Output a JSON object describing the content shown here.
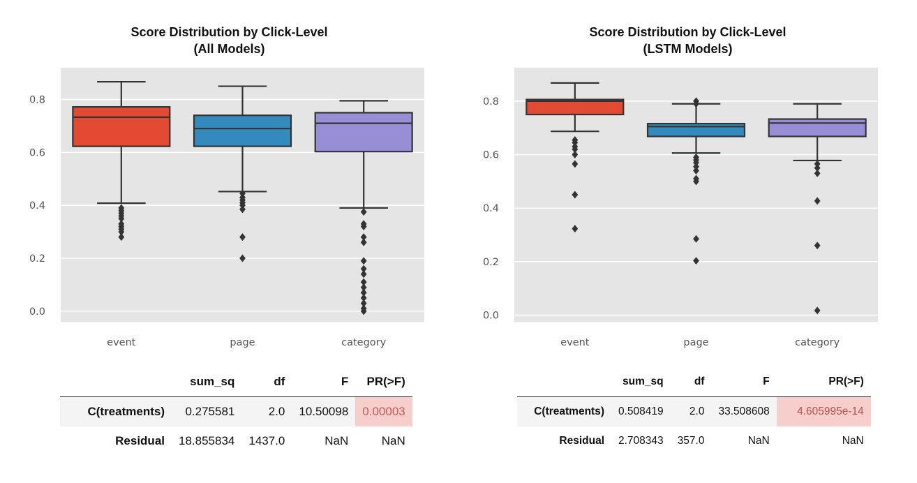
{
  "colors": {
    "event": "#e24a33",
    "page": "#348abd",
    "category": "#988ed5",
    "plot_bg": "#e5e5e5",
    "grid": "#ffffff",
    "line": "#333333",
    "sig": "#f6cfcd"
  },
  "chart_data": [
    {
      "type": "box",
      "title_line1": "Score Distribution by Click-Level",
      "title_line2": "(All Models)",
      "categories": [
        "event",
        "page",
        "category"
      ],
      "ylim": [
        -0.04,
        0.92
      ],
      "yticks": [
        0.0,
        0.2,
        0.4,
        0.6,
        0.8
      ],
      "ytick_labels": [
        "0.0",
        "0.2",
        "0.4",
        "0.6",
        "0.8"
      ],
      "grid": true,
      "boxes": [
        {
          "name": "event",
          "q1": 0.623,
          "median": 0.733,
          "q3": 0.772,
          "whisker_low": 0.408,
          "whisker_high": 0.867,
          "outliers": [
            0.39,
            0.38,
            0.37,
            0.36,
            0.35,
            0.33,
            0.32,
            0.31,
            0.3,
            0.28
          ]
        },
        {
          "name": "page",
          "q1": 0.623,
          "median": 0.69,
          "q3": 0.74,
          "whisker_low": 0.452,
          "whisker_high": 0.85,
          "outliers": [
            0.445,
            0.43,
            0.42,
            0.41,
            0.4,
            0.385,
            0.28,
            0.2
          ]
        },
        {
          "name": "category",
          "q1": 0.603,
          "median": 0.71,
          "q3": 0.75,
          "whisker_low": 0.39,
          "whisker_high": 0.795,
          "outliers": [
            0.375,
            0.33,
            0.32,
            0.28,
            0.26,
            0.19,
            0.16,
            0.14,
            0.11,
            0.09,
            0.07,
            0.05,
            0.03,
            0.01,
            0.0
          ]
        }
      ]
    },
    {
      "type": "box",
      "title_line1": "Score Distribution by Click-Level",
      "title_line2": "(LSTM Models)",
      "categories": [
        "event",
        "page",
        "category"
      ],
      "ylim": [
        -0.025,
        0.925
      ],
      "yticks": [
        0.0,
        0.2,
        0.4,
        0.6,
        0.8
      ],
      "ytick_labels": [
        "0.0",
        "0.2",
        "0.4",
        "0.6",
        "0.8"
      ],
      "grid": true,
      "boxes": [
        {
          "name": "event",
          "q1": 0.75,
          "median": 0.8,
          "q3": 0.806,
          "whisker_low": 0.687,
          "whisker_high": 0.868,
          "outliers": [
            0.655,
            0.645,
            0.63,
            0.62,
            0.6,
            0.565,
            0.45,
            0.323
          ]
        },
        {
          "name": "page",
          "q1": 0.668,
          "median": 0.705,
          "q3": 0.716,
          "whisker_low": 0.606,
          "whisker_high": 0.79,
          "outliers": [
            0.8,
            0.79,
            0.59,
            0.58,
            0.57,
            0.555,
            0.54,
            0.51,
            0.5,
            0.285,
            0.203
          ]
        },
        {
          "name": "category",
          "q1": 0.668,
          "median": 0.718,
          "q3": 0.733,
          "whisker_low": 0.578,
          "whisker_high": 0.79,
          "outliers": [
            0.565,
            0.55,
            0.53,
            0.427,
            0.26,
            0.017
          ]
        }
      ]
    }
  ],
  "tables": [
    {
      "headers": [
        "",
        "sum_sq",
        "df",
        "F",
        "PR(>F)"
      ],
      "rows": [
        [
          "C(treatments)",
          "0.275581",
          "2.0",
          "10.50098",
          "0.00003"
        ],
        [
          "Residual",
          "18.855834",
          "1437.0",
          "NaN",
          "NaN"
        ]
      ]
    },
    {
      "headers": [
        "",
        "sum_sq",
        "df",
        "F",
        "PR(>F)"
      ],
      "rows": [
        [
          "C(treatments)",
          "0.508419",
          "2.0",
          "33.508608",
          "4.605995e-14"
        ],
        [
          "Residual",
          "2.708343",
          "357.0",
          "NaN",
          "NaN"
        ]
      ]
    }
  ]
}
